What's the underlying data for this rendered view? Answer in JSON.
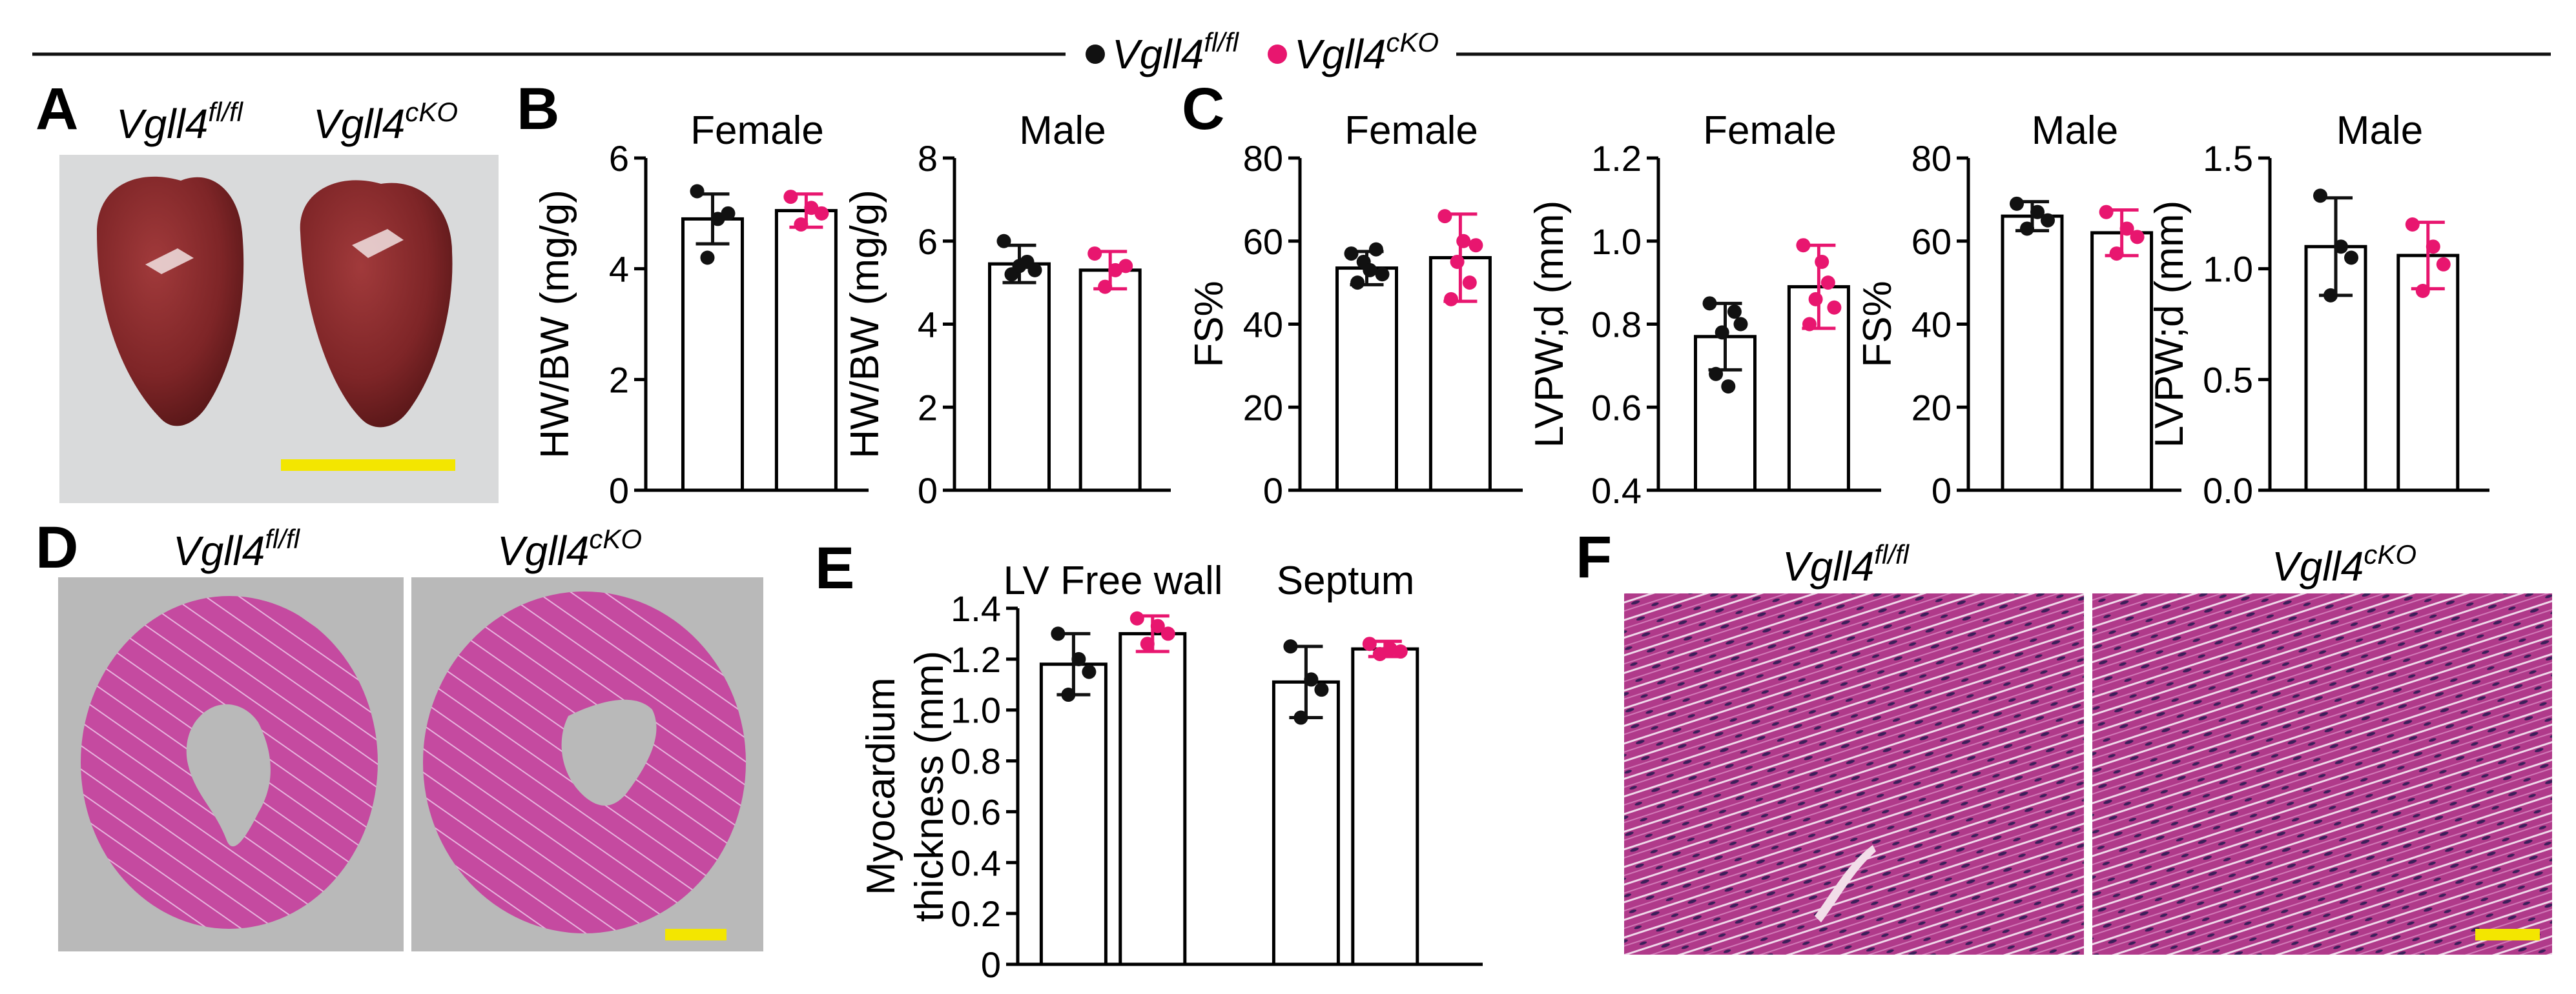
{
  "legend": {
    "control": {
      "base": "Vgll4",
      "sup": "fl/fl",
      "color": "#111111"
    },
    "ko": {
      "base": "Vgll4",
      "sup": "cKO",
      "color": "#e8166f"
    }
  },
  "panels": {
    "A": {
      "letter": "A",
      "left_base": "Vgll4",
      "left_sup": "fl/fl",
      "right_base": "Vgll4",
      "right_sup": "cKO"
    },
    "B": {
      "letter": "B"
    },
    "C": {
      "letter": "C"
    },
    "D": {
      "letter": "D",
      "left_base": "Vgll4",
      "left_sup": "fl/fl",
      "right_base": "Vgll4",
      "right_sup": "cKO"
    },
    "E": {
      "letter": "E"
    },
    "F": {
      "letter": "F",
      "left_base": "Vgll4",
      "left_sup": "fl/fl",
      "right_base": "Vgll4",
      "right_sup": "cKO"
    }
  },
  "colors": {
    "heart": "#7e2527",
    "photo_bg": "#d9dadb",
    "scalebar": "#f3e600",
    "histo_bg": "#b9b9b9",
    "tissue": "#c4479e",
    "muscle": "#b43a8e"
  },
  "chart_data": [
    {
      "id": "b_female",
      "type": "bar",
      "title": "Female",
      "ylabel": "HW/BW (mg/g)",
      "ylim": [
        0,
        6
      ],
      "yticks": [
        0,
        2,
        4,
        6
      ],
      "yticklabels": [
        "0",
        "2",
        "4",
        "6"
      ],
      "groups": [
        {
          "name": "Female",
          "bars": [
            {
              "series": "Vgll4 fl/fl",
              "mean": 4.9,
              "sd": 0.45,
              "points": [
                5.4,
                4.2,
                4.9,
                5.0
              ]
            },
            {
              "series": "Vgll4 cKO",
              "mean": 5.05,
              "sd": 0.3,
              "points": [
                5.3,
                4.8,
                5.1,
                5.0
              ]
            }
          ]
        }
      ]
    },
    {
      "id": "b_male",
      "type": "bar",
      "title": "Male",
      "ylabel": "HW/BW (mg/g)",
      "ylim": [
        0,
        8
      ],
      "yticks": [
        0,
        2,
        4,
        6,
        8
      ],
      "yticklabels": [
        "0",
        "2",
        "4",
        "6",
        "8"
      ],
      "groups": [
        {
          "name": "Male",
          "bars": [
            {
              "series": "Vgll4 fl/fl",
              "mean": 5.45,
              "sd": 0.45,
              "points": [
                6.0,
                5.2,
                5.4,
                5.5,
                5.3
              ]
            },
            {
              "series": "Vgll4 cKO",
              "mean": 5.3,
              "sd": 0.45,
              "points": [
                5.7,
                4.9,
                5.3,
                5.4
              ]
            }
          ]
        }
      ]
    },
    {
      "id": "c_female_fs",
      "type": "bar",
      "title": "Female",
      "ylabel": "FS%",
      "ylim": [
        0,
        80
      ],
      "yticks": [
        0,
        20,
        40,
        60,
        80
      ],
      "yticklabels": [
        "0",
        "20",
        "40",
        "60",
        "80"
      ],
      "groups": [
        {
          "name": "Female",
          "bars": [
            {
              "series": "Vgll4 fl/fl",
              "mean": 53.5,
              "sd": 4,
              "points": [
                57,
                50,
                55,
                53,
                58,
                52
              ]
            },
            {
              "series": "Vgll4 cKO",
              "mean": 56,
              "sd": 10.5,
              "points": [
                66,
                46,
                55,
                60,
                50,
                59
              ]
            }
          ]
        }
      ]
    },
    {
      "id": "c_female_lvpw",
      "type": "bar",
      "title": "Female",
      "ylabel": "LVPW;d (mm)",
      "ylim": [
        0.4,
        1.2
      ],
      "yticks": [
        0.4,
        0.6,
        0.8,
        1.0,
        1.2
      ],
      "yticklabels": [
        "0.4",
        "0.6",
        "0.8",
        "1.0",
        "1.2"
      ],
      "groups": [
        {
          "name": "Female",
          "bars": [
            {
              "series": "Vgll4 fl/fl",
              "mean": 0.77,
              "sd": 0.08,
              "points": [
                0.85,
                0.68,
                0.78,
                0.65,
                0.83,
                0.8
              ]
            },
            {
              "series": "Vgll4 cKO",
              "mean": 0.89,
              "sd": 0.1,
              "points": [
                0.99,
                0.8,
                0.86,
                0.95,
                0.9,
                0.84
              ]
            }
          ]
        }
      ]
    },
    {
      "id": "c_male_fs",
      "type": "bar",
      "title": "Male",
      "ylabel": "FS%",
      "ylim": [
        0,
        80
      ],
      "yticks": [
        0,
        20,
        40,
        60,
        80
      ],
      "yticklabels": [
        "0",
        "20",
        "40",
        "60",
        "80"
      ],
      "groups": [
        {
          "name": "Male",
          "bars": [
            {
              "series": "Vgll4 fl/fl",
              "mean": 66,
              "sd": 3.5,
              "points": [
                69,
                63,
                67,
                65
              ]
            },
            {
              "series": "Vgll4 cKO",
              "mean": 62,
              "sd": 5.5,
              "points": [
                67,
                57,
                63,
                61
              ]
            }
          ]
        }
      ]
    },
    {
      "id": "c_male_lvpw",
      "type": "bar",
      "title": "Male",
      "ylabel": "LVPW;d (mm)",
      "ylim": [
        0,
        1.5
      ],
      "yticks": [
        0,
        0.5,
        1.0,
        1.5
      ],
      "yticklabels": [
        "0.0",
        "0.5",
        "1.0",
        "1.5"
      ],
      "groups": [
        {
          "name": "Male",
          "bars": [
            {
              "series": "Vgll4 fl/fl",
              "mean": 1.1,
              "sd": 0.22,
              "points": [
                1.33,
                0.88,
                1.1,
                1.05
              ]
            },
            {
              "series": "Vgll4 cKO",
              "mean": 1.06,
              "sd": 0.15,
              "points": [
                1.2,
                0.9,
                1.1,
                1.02
              ]
            }
          ]
        }
      ]
    },
    {
      "id": "e_thickness",
      "type": "bar",
      "title": "",
      "ylabel": "Myocardium thickness (mm)",
      "ylabel_lines": [
        "Myocardium",
        "thickness (mm)"
      ],
      "ylim": [
        0,
        1.4
      ],
      "yticks": [
        0,
        0.2,
        0.4,
        0.6,
        0.8,
        1.0,
        1.2,
        1.4
      ],
      "yticklabels": [
        "0",
        "0.2",
        "0.4",
        "0.6",
        "0.8",
        "1.0",
        "1.2",
        "1.4"
      ],
      "groups": [
        {
          "name": "LV Free wall",
          "bars": [
            {
              "series": "Vgll4 fl/fl",
              "mean": 1.18,
              "sd": 0.12,
              "points": [
                1.3,
                1.06,
                1.2,
                1.15
              ]
            },
            {
              "series": "Vgll4 cKO",
              "mean": 1.3,
              "sd": 0.07,
              "points": [
                1.36,
                1.26,
                1.33,
                1.3
              ]
            }
          ]
        },
        {
          "name": "Septum",
          "bars": [
            {
              "series": "Vgll4 fl/fl",
              "mean": 1.11,
              "sd": 0.14,
              "points": [
                1.25,
                0.97,
                1.12,
                1.08
              ]
            },
            {
              "series": "Vgll4 cKO",
              "mean": 1.24,
              "sd": 0.03,
              "points": [
                1.26,
                1.22,
                1.24,
                1.23
              ]
            }
          ]
        }
      ]
    }
  ]
}
